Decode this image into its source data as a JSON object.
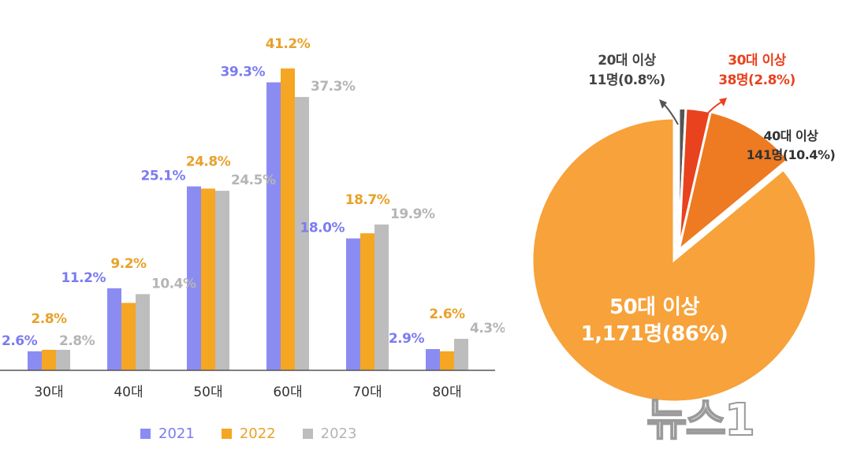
{
  "chart_data": [
    {
      "type": "bar",
      "categories": [
        "30대",
        "40대",
        "50대",
        "60대",
        "70대",
        "80대"
      ],
      "series": [
        {
          "name": "2021",
          "color": "#8b8cf2",
          "values": [
            2.6,
            11.2,
            25.1,
            39.3,
            18.0,
            2.9
          ],
          "labels": [
            "2.6%",
            "11.2%",
            "25.1%",
            "39.3%",
            "18.0%",
            "2.9%"
          ]
        },
        {
          "name": "2022",
          "color": "#f5a623",
          "values": [
            2.8,
            9.2,
            24.8,
            41.2,
            18.7,
            2.6
          ],
          "labels": [
            "2.8%",
            "9.2%",
            "24.8%",
            "41.2%",
            "18.7%",
            "2.6%"
          ]
        },
        {
          "name": "2023",
          "color": "#bdbdbd",
          "values": [
            2.8,
            10.4,
            24.5,
            37.3,
            19.9,
            4.3
          ],
          "labels": [
            "2.8%",
            "10.4%",
            "24.5%",
            "37.3%",
            "19.9%",
            "4.3%"
          ]
        }
      ],
      "label_colors": [
        "#7b7cf0",
        "#e9a12a",
        "#b5b5b5"
      ],
      "grid": false,
      "legend_position": "bottom"
    },
    {
      "type": "pie",
      "slices": [
        {
          "category": "20대 이상",
          "count_label": "11명(0.8%)",
          "value": 0.8,
          "color": "#555555",
          "text_color": "#444444"
        },
        {
          "category": "30대 이상",
          "count_label": "38명(2.8%)",
          "value": 2.8,
          "color": "#e8421f",
          "text_color": "#e8421f"
        },
        {
          "category": "40대 이상",
          "count_label": "141명(10.4%)",
          "value": 10.4,
          "color": "#ee7a22",
          "text_color": "#333333"
        },
        {
          "category": "50대 이상",
          "count_label": "1,171명(86%)",
          "value": 86,
          "color": "#f7a23a",
          "text_color": "#ffffff"
        }
      ]
    }
  ],
  "watermark": "뉴스1"
}
